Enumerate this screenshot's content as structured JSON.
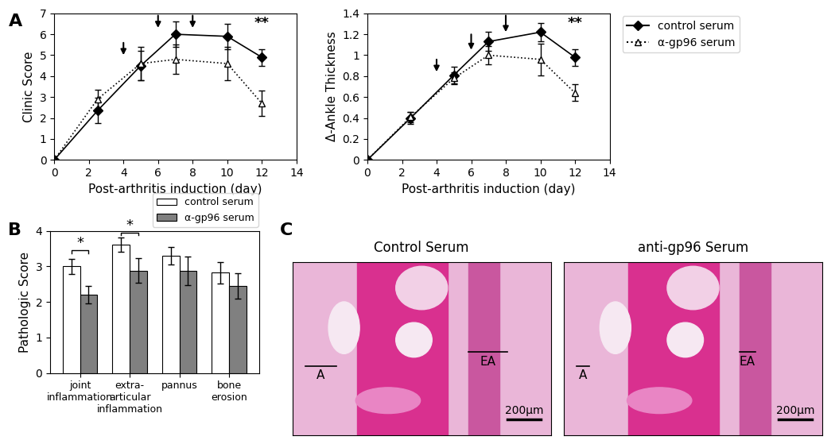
{
  "chart_data": [
    {
      "type": "line",
      "panel_label": "A",
      "x_label": "Post-arthritis induction (day)",
      "y_label": "Clinic Score",
      "x": [
        0,
        2.5,
        5,
        7,
        10,
        12
      ],
      "series": [
        {
          "name": "control serum",
          "color": "#000000",
          "marker": "diamond",
          "line_style": "solid",
          "values": [
            0,
            2.35,
            4.5,
            6.0,
            5.9,
            4.9
          ],
          "errors": [
            0,
            0.6,
            0.7,
            0.6,
            0.6,
            0.4
          ]
        },
        {
          "name": "α-gp96 serum",
          "color": "#000000",
          "marker": "open-triangle",
          "line_style": "dotted",
          "values": [
            0,
            2.9,
            4.6,
            4.8,
            4.6,
            2.7
          ],
          "errors": [
            0,
            0.45,
            0.8,
            0.7,
            0.8,
            0.6
          ]
        }
      ],
      "arrows": [
        {
          "x": 4,
          "y_top": 5.7,
          "y_tip": 4.9
        },
        {
          "x": 6,
          "y_top": 7.0,
          "y_tip": 6.2
        },
        {
          "x": 8,
          "y_top": 7.0,
          "y_tip": 6.2
        }
      ],
      "annotations": [
        {
          "text": "**",
          "x": 12,
          "y": 6.2
        }
      ],
      "xlim": [
        0,
        14
      ],
      "xticks": [
        0,
        2,
        4,
        6,
        8,
        10,
        12,
        14
      ],
      "ylim": [
        0,
        7
      ],
      "yticks": [
        0,
        1,
        2,
        3,
        4,
        5,
        6,
        7
      ]
    },
    {
      "type": "line",
      "x_label": "Post-arthritis induction (day)",
      "y_label": "Δ-Ankle Thickness",
      "x": [
        0,
        2.5,
        5,
        7,
        10,
        12
      ],
      "series": [
        {
          "name": "control serum",
          "color": "#000000",
          "marker": "diamond",
          "line_style": "solid",
          "values": [
            0,
            0.4,
            0.81,
            1.13,
            1.22,
            0.98
          ],
          "errors": [
            0,
            0.06,
            0.08,
            0.09,
            0.09,
            0.08
          ]
        },
        {
          "name": "α-gp96 serum",
          "color": "#000000",
          "marker": "open-triangle",
          "line_style": "dotted",
          "values": [
            0,
            0.41,
            0.78,
            1.0,
            0.96,
            0.64
          ],
          "errors": [
            0,
            0.05,
            0.06,
            0.09,
            0.15,
            0.08
          ]
        }
      ],
      "arrows": [
        {
          "x": 4,
          "y_top": 0.98,
          "y_tip": 0.82
        },
        {
          "x": 6,
          "y_top": 1.22,
          "y_tip": 1.03
        },
        {
          "x": 8,
          "y_top": 1.4,
          "y_tip": 1.2
        }
      ],
      "annotations": [
        {
          "text": "**",
          "x": 12,
          "y": 1.24
        }
      ],
      "legend": "upper left",
      "xlim": [
        0,
        14
      ],
      "xticks": [
        0,
        2,
        4,
        6,
        8,
        10,
        12,
        14
      ],
      "ylim": [
        0,
        1.4
      ],
      "yticks": [
        0,
        0.2,
        0.4,
        0.6,
        0.8,
        1,
        1.2,
        1.4
      ]
    },
    {
      "type": "bar",
      "panel_label": "B",
      "y_label": "Pathologic Score",
      "categories": [
        "joint\ninflammation",
        "extra-\narticular\ninflammation",
        "pannus",
        "bone\nerosion"
      ],
      "series": [
        {
          "name": "control serum",
          "color": "#ffffff",
          "values": [
            3.0,
            3.62,
            3.3,
            2.82
          ],
          "errors": [
            0.22,
            0.2,
            0.25,
            0.3
          ]
        },
        {
          "name": "α-gp96 serum",
          "color": "#808080",
          "values": [
            2.2,
            2.88,
            2.88,
            2.45
          ],
          "errors": [
            0.25,
            0.35,
            0.4,
            0.35
          ]
        }
      ],
      "annotations": [
        {
          "text": "*",
          "category": 0,
          "y": 3.45
        },
        {
          "text": "*",
          "category": 1,
          "y": 3.95
        }
      ],
      "legend": "upper right",
      "ylim": [
        0,
        4
      ],
      "yticks": [
        0,
        1,
        2,
        3,
        4
      ]
    }
  ],
  "images": {
    "panel_label": "C",
    "panels": [
      {
        "title": "Control Serum",
        "labels": [
          "A",
          "EA"
        ],
        "scale_bar": "200μm"
      },
      {
        "title": "anti-gp96 Serum",
        "labels": [
          "A",
          "EA"
        ],
        "scale_bar": "200μm"
      }
    ]
  }
}
